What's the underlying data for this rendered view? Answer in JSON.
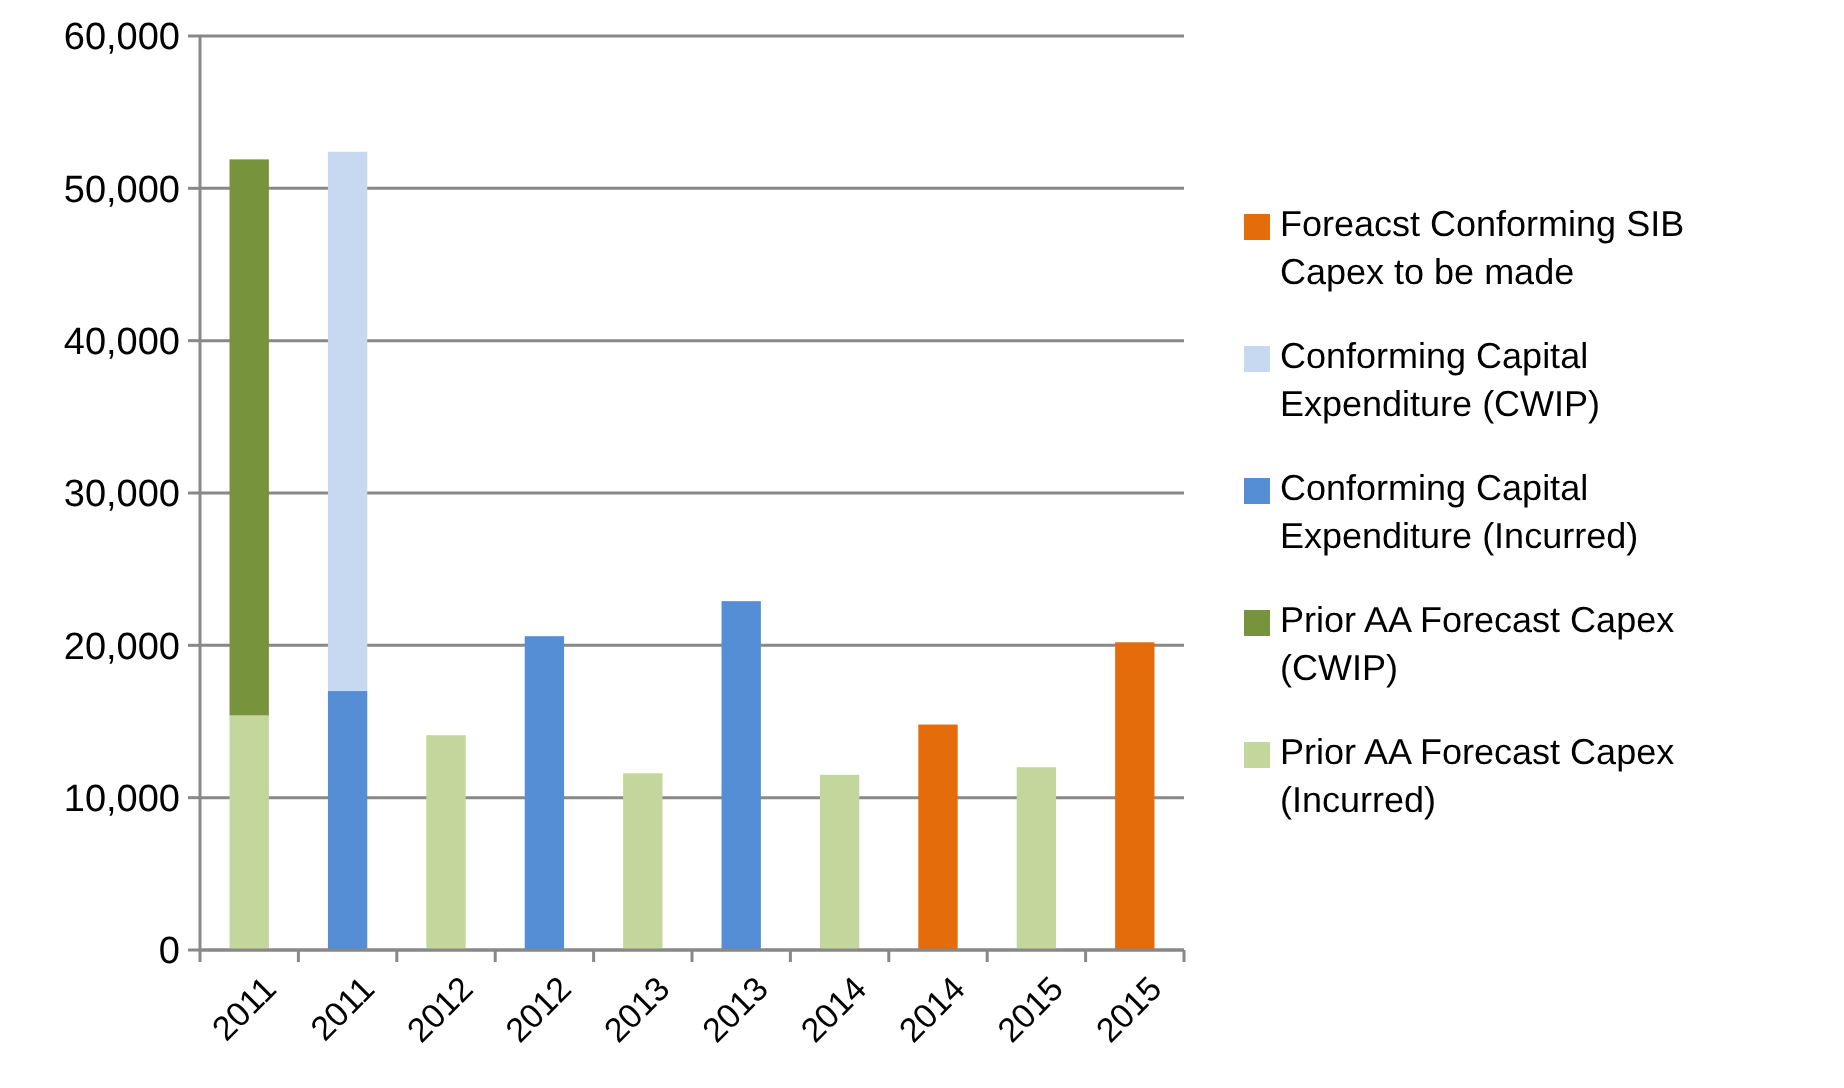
{
  "chart_data": {
    "type": "bar",
    "stacked": true,
    "categories": [
      "2011",
      "2011",
      "2012",
      "2012",
      "2013",
      "2013",
      "2014",
      "2014",
      "2015",
      "2015"
    ],
    "series": [
      {
        "name": "Prior AA Forecast Capex (Incurred)",
        "color": "#c3d69b",
        "values": [
          15400,
          null,
          14100,
          null,
          11600,
          null,
          11500,
          null,
          12000,
          null
        ]
      },
      {
        "name": "Prior AA Forecast Capex (CWIP)",
        "color": "#77933c",
        "values": [
          36500,
          null,
          null,
          null,
          null,
          null,
          null,
          null,
          null,
          null
        ]
      },
      {
        "name": "Conforming Capital Expenditure (Incurred)",
        "color": "#558ed5",
        "values": [
          null,
          17000,
          null,
          20600,
          null,
          22900,
          null,
          null,
          null,
          null
        ]
      },
      {
        "name": "Conforming Capital Expenditure (CWIP)",
        "color": "#c6d9f1",
        "values": [
          null,
          35400,
          null,
          null,
          null,
          null,
          null,
          null,
          null,
          null
        ]
      },
      {
        "name": "Foreacst Conforming SIB Capex to be made",
        "color": "#e46c0a",
        "values": [
          null,
          null,
          null,
          null,
          null,
          null,
          null,
          14800,
          null,
          20200
        ]
      }
    ],
    "ylim": [
      0,
      60000
    ],
    "yticks": [
      {
        "value": 0,
        "label": "0"
      },
      {
        "value": 10000,
        "label": "10,000"
      },
      {
        "value": 20000,
        "label": "20,000"
      },
      {
        "value": 30000,
        "label": "30,000"
      },
      {
        "value": 40000,
        "label": "40,000"
      },
      {
        "value": 50000,
        "label": "50,000"
      },
      {
        "value": 60000,
        "label": "60,000"
      }
    ],
    "grid": "y",
    "legend": "right"
  }
}
